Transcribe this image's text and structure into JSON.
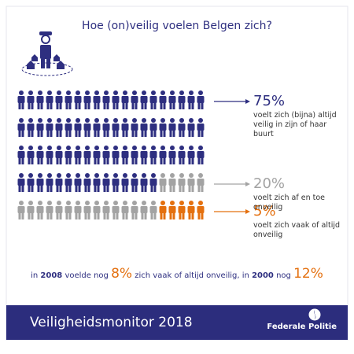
{
  "chart_data": {
    "type": "pictogram",
    "title": "Hoe (on)veilig voelen Belgen zich?",
    "per_row": 20,
    "series": [
      {
        "name": "voelt zich (bijna) altijd veilig in zijn of haar buurt",
        "color": "#2e2f80",
        "values": [
          75
        ],
        "value_labels": [
          "75%"
        ]
      },
      {
        "name": "voelt zich af en toe onveilig",
        "color": "#a3a3a3",
        "values": [
          20
        ],
        "value_labels": [
          "20%"
        ]
      },
      {
        "name": "voelt zich vaak of altijd onveilig",
        "color": "#e4700f",
        "values": [
          5
        ],
        "value_labels": [
          "5%"
        ]
      }
    ],
    "annotation": [
      "in",
      "2008",
      "voelde nog",
      "8%",
      "zich vaak of altijd onveilig, in",
      "2000",
      "nog",
      "12%"
    ],
    "footer": "Veiligheidsmonitor 2018",
    "brand": "Federale Politie"
  }
}
